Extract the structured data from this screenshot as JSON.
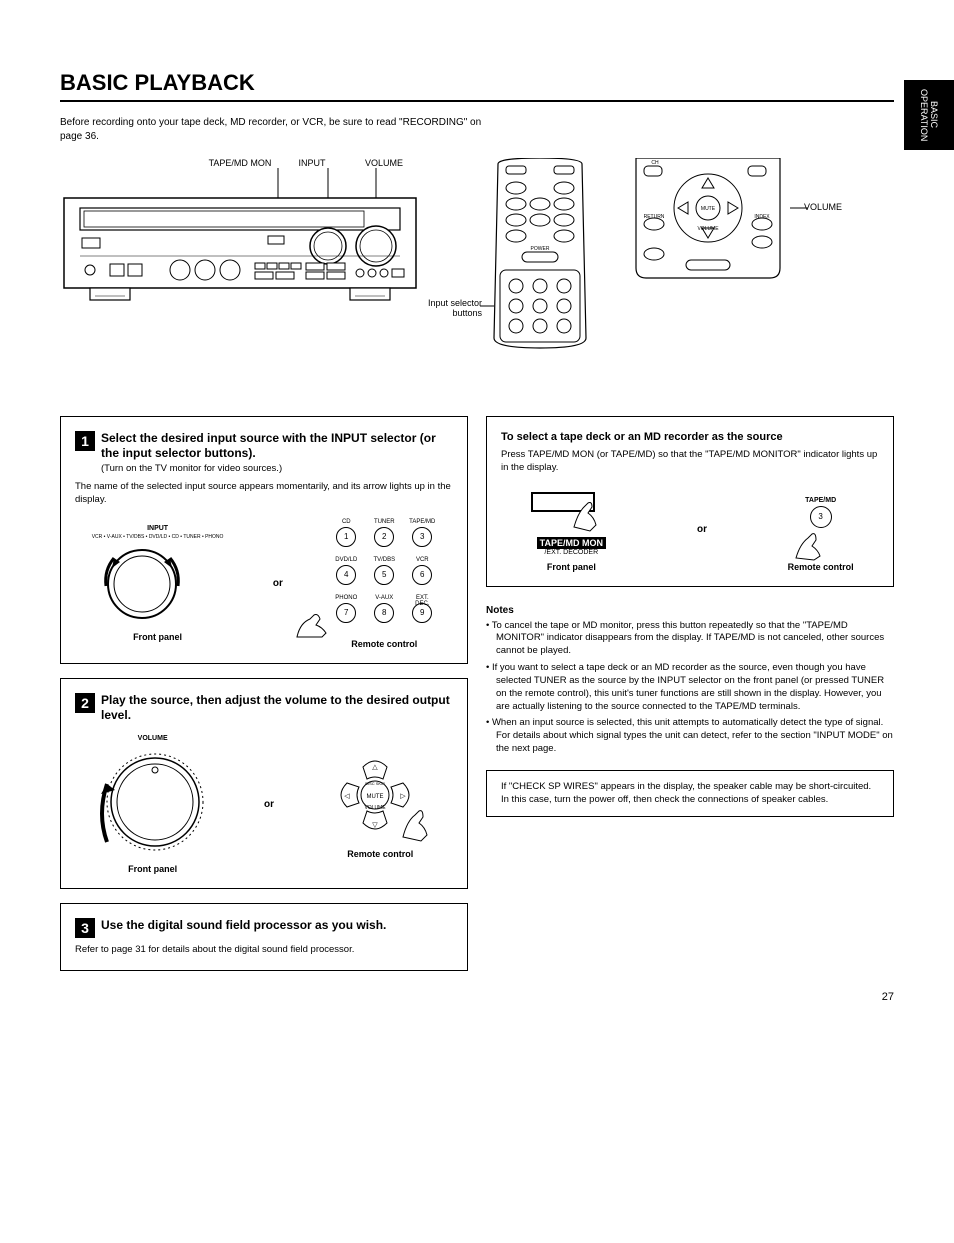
{
  "sideTab": "BASIC OPERATION",
  "pageTitle": "BASIC PLAYBACK",
  "intro": "Before recording onto your tape deck, MD recorder, or VCR, be sure to read \"RECORDING\" on page 36.",
  "receiverLabels": [
    "TAPE/MD MON",
    "INPUT",
    "VOLUME"
  ],
  "remoteLabels": {
    "inputSelector": "Input selector buttons",
    "volume": "VOLUME"
  },
  "steps": {
    "s1": {
      "num": "1",
      "title": "Select the desired input source with the INPUT selector (or the input selector buttons).",
      "sub": "(Turn on the TV monitor for video sources.)",
      "body": "The name of the selected input source appears momentarily, and its arrow lights up in the display.",
      "panelLabel": "Front panel",
      "orLabel": "or",
      "remoteLabel": "Remote control",
      "inputArc": "VCR • V-AUX • TV/DBS • DVD/LD • CD • TUNER • PHONO",
      "inputWord": "INPUT",
      "keypad": [
        {
          "lbl": "CD",
          "n": "1"
        },
        {
          "lbl": "TUNER",
          "n": "2"
        },
        {
          "lbl": "TAPE/MD",
          "n": "3"
        },
        {
          "lbl": "DVD/LD",
          "n": "4"
        },
        {
          "lbl": "TV/DBS",
          "n": "5"
        },
        {
          "lbl": "VCR",
          "n": "6"
        },
        {
          "lbl": "PHONO",
          "n": "7"
        },
        {
          "lbl": "V-AUX",
          "n": "8"
        },
        {
          "lbl": "EXT. DEC.",
          "n": "9"
        }
      ]
    },
    "s2": {
      "num": "2",
      "title": "Play the source, then adjust the volume to the desired output level.",
      "panelLabel": "Front panel",
      "orLabel": "or",
      "remoteLabel": "Remote control",
      "volumeWord": "VOLUME",
      "mute": "MUTE"
    },
    "s3": {
      "num": "3",
      "title": "Use the digital sound field processor as you wish.",
      "body": "Refer to page 31 for details about the digital sound field processor."
    }
  },
  "tapemd": {
    "heading": "To select a tape deck or an MD recorder as the source",
    "body": "Press TAPE/MD MON (or TAPE/MD) so that the \"TAPE/MD MONITOR\" indicator lights up in the display.",
    "panelLabel": "Front panel",
    "orLabel": "or",
    "remoteLabel": "Remote control",
    "panelBtnMain": "TAPE/MD MON",
    "panelBtnSub": "/EXT. DECODER",
    "keyLbl": "TAPE/MD",
    "keyNum": "3"
  },
  "notes": {
    "head": "Notes",
    "items": [
      "To cancel the tape or MD monitor, press this button repeatedly so that the \"TAPE/MD MONITOR\" indicator disappears from the display. If TAPE/MD is not canceled, other sources cannot be played.",
      "If you want to select a tape deck or an MD recorder as the source, even though you have selected TUNER as the source by the INPUT selector on the front panel (or pressed TUNER on the remote control), this unit's tuner functions are still shown in the display. However, you are actually listening to the source connected to the TAPE/MD terminals.",
      "When an input source is selected, this unit attempts to automatically detect the type of signal. For details about which signal types the unit can detect, refer to the section \"INPUT MODE\" on the next page."
    ]
  },
  "ruleBox": "If \"CHECK SP WIRES\" appears in the display, the speaker cable may be short-circuited. In this case, turn the power off, then check the connections of speaker cables.",
  "pageNum": "27"
}
